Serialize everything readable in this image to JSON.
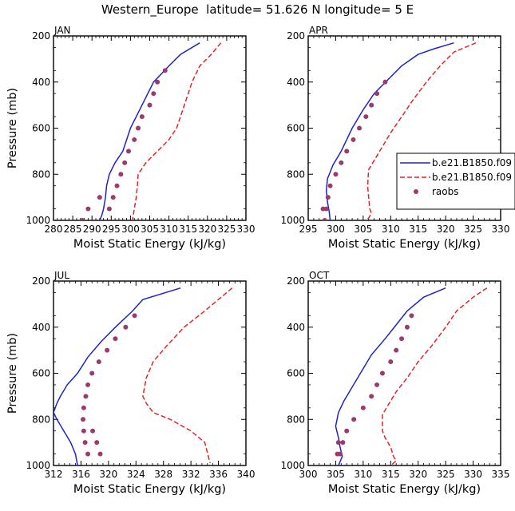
{
  "figure_title": "Western_Europe  latitude= 51.626 N longitude= 5 E",
  "colors": {
    "model1": "#1f23c8",
    "model2": "#e3242b",
    "obs": "#9b3a6b"
  },
  "legend": {
    "entries": [
      {
        "label": "b.e21.B1850.f09",
        "style": "solid",
        "color": "#1f23c8"
      },
      {
        "label": "b.e21.B1850.f09",
        "style": "dashed",
        "color": "#e3242b"
      },
      {
        "label": "raobs",
        "style": "marker",
        "color": "#9b3a6b"
      }
    ]
  },
  "chart_data": [
    {
      "type": "line",
      "title": "JAN",
      "xlabel": "Moist Static Energy (kJ/kg)",
      "ylabel": "Pressure (mb)",
      "xlim": [
        280,
        330
      ],
      "ylim": [
        1000,
        200
      ],
      "y_reversed": true,
      "xticks": [
        280,
        285,
        290,
        295,
        300,
        305,
        310,
        315,
        320,
        325,
        330
      ],
      "yticks": [
        200,
        400,
        600,
        800,
        1000
      ],
      "series": [
        {
          "kind": "line",
          "style": "solid",
          "color": "#1f23c8",
          "x": [
            318,
            313,
            310,
            306,
            303,
            300,
            298,
            296,
            294.5,
            293.8,
            293.5,
            293,
            292.5,
            292
          ],
          "y": [
            230,
            280,
            330,
            400,
            500,
            600,
            700,
            750,
            800,
            850,
            900,
            950,
            980,
            1000
          ]
        },
        {
          "kind": "line",
          "style": "dashed",
          "color": "#e3242b",
          "x": [
            323.5,
            321,
            318,
            316,
            314,
            312,
            310,
            307,
            304,
            302,
            301.8,
            301.5,
            301,
            300.5
          ],
          "y": [
            230,
            280,
            330,
            400,
            500,
            600,
            650,
            700,
            750,
            800,
            850,
            900,
            950,
            1000
          ]
        },
        {
          "kind": "scatter",
          "color": "#9b3a6b",
          "x": [
            309,
            307,
            306,
            305,
            303,
            302,
            301,
            299.5,
            298.5,
            297.5,
            296.5,
            295.5,
            294.5,
            292,
            289,
            287.5
          ],
          "y": [
            350,
            400,
            450,
            500,
            550,
            600,
            650,
            700,
            750,
            800,
            850,
            900,
            950,
            900,
            950,
            1000
          ]
        }
      ]
    },
    {
      "type": "line",
      "title": "APR",
      "xlabel": "Moist Static Energy (kJ/kg)",
      "ylabel": "",
      "xlim": [
        295,
        330
      ],
      "ylim": [
        1000,
        200
      ],
      "y_reversed": true,
      "xticks": [
        295,
        300,
        305,
        310,
        315,
        320,
        325,
        330
      ],
      "yticks": [
        200,
        400,
        600,
        800,
        1000
      ],
      "series": [
        {
          "kind": "line",
          "style": "solid",
          "color": "#1f23c8",
          "x": [
            321.5,
            318,
            315,
            312,
            309.5,
            307,
            305,
            303,
            301,
            299.5,
            298.5,
            298.3,
            298.5,
            298.8,
            299
          ],
          "y": [
            230,
            255,
            280,
            330,
            390,
            450,
            520,
            600,
            700,
            760,
            820,
            870,
            920,
            960,
            1000
          ]
        },
        {
          "kind": "line",
          "style": "dashed",
          "color": "#e3242b",
          "x": [
            325.5,
            321.5,
            319,
            316.5,
            314,
            312,
            310,
            308,
            306,
            305.8,
            306,
            306.2,
            306.5,
            306,
            305.5
          ],
          "y": [
            230,
            270,
            330,
            400,
            480,
            550,
            620,
            700,
            780,
            850,
            900,
            950,
            970,
            990,
            1000
          ]
        },
        {
          "kind": "scatter",
          "color": "#9b3a6b",
          "x": [
            309,
            307.5,
            306.5,
            305.5,
            304.3,
            303.2,
            302,
            301,
            300,
            299,
            298.6,
            298.3,
            298.0,
            297.7
          ],
          "y": [
            400,
            450,
            500,
            550,
            600,
            650,
            700,
            750,
            800,
            850,
            900,
            950,
            1000,
            950
          ]
        }
      ]
    },
    {
      "type": "line",
      "title": "JUL",
      "xlabel": "Moist Static Energy (kJ/kg)",
      "ylabel": "Pressure (mb)",
      "xlim": [
        312,
        340
      ],
      "ylim": [
        1000,
        200
      ],
      "y_reversed": true,
      "xticks": [
        312,
        316,
        320,
        324,
        328,
        332,
        336,
        340
      ],
      "yticks": [
        200,
        400,
        600,
        800,
        1000
      ],
      "series": [
        {
          "kind": "line",
          "style": "solid",
          "color": "#1f23c8",
          "x": [
            330.5,
            325,
            323.5,
            321,
            319,
            317,
            315.5,
            314,
            313,
            312.5,
            312,
            312.5,
            313.5,
            314.5,
            315.2,
            315.5
          ],
          "y": [
            230,
            280,
            330,
            400,
            460,
            530,
            600,
            650,
            700,
            730,
            770,
            800,
            850,
            900,
            950,
            1000
          ]
        },
        {
          "kind": "line",
          "style": "dashed",
          "color": "#e3242b",
          "x": [
            338,
            336,
            334,
            331,
            328.5,
            326.5,
            325.5,
            325,
            325.5,
            326.5,
            329,
            332,
            334,
            334.8
          ],
          "y": [
            230,
            280,
            330,
            400,
            480,
            550,
            620,
            700,
            730,
            770,
            800,
            850,
            900,
            990
          ]
        },
        {
          "kind": "scatter",
          "color": "#9b3a6b",
          "x": [
            323.8,
            322.5,
            321,
            319.8,
            318.6,
            317.6,
            317,
            316.7,
            316.4,
            316.3,
            316.4,
            316.6,
            317,
            317.7,
            318.3,
            318.8
          ],
          "y": [
            350,
            400,
            450,
            500,
            550,
            600,
            650,
            700,
            750,
            800,
            850,
            900,
            950,
            850,
            900,
            950
          ]
        }
      ]
    },
    {
      "type": "line",
      "title": "OCT",
      "xlabel": "Moist Static Energy (kJ/kg)",
      "ylabel": "",
      "xlim": [
        300,
        335
      ],
      "ylim": [
        1000,
        200
      ],
      "y_reversed": true,
      "xticks": [
        300,
        305,
        310,
        315,
        320,
        325,
        330,
        335
      ],
      "yticks": [
        200,
        400,
        600,
        800,
        1000
      ],
      "series": [
        {
          "kind": "line",
          "style": "solid",
          "color": "#1f23c8",
          "x": [
            325,
            321,
            318,
            316,
            314,
            311.5,
            309.5,
            308,
            306.5,
            305.5,
            305,
            305.5,
            305.8,
            306.2,
            305.5
          ],
          "y": [
            230,
            270,
            330,
            390,
            450,
            520,
            600,
            660,
            720,
            770,
            830,
            880,
            920,
            960,
            1000
          ]
        },
        {
          "kind": "line",
          "style": "dashed",
          "color": "#e3242b",
          "x": [
            332.5,
            330,
            327,
            325,
            322.5,
            320,
            318,
            316,
            314.5,
            313.5,
            313.5,
            314,
            315,
            315.5,
            316,
            315
          ],
          "y": [
            230,
            270,
            330,
            400,
            480,
            550,
            620,
            680,
            740,
            780,
            850,
            880,
            920,
            960,
            980,
            1000
          ]
        },
        {
          "kind": "scatter",
          "color": "#9b3a6b",
          "x": [
            318.8,
            318,
            317,
            316,
            315,
            313.5,
            312.5,
            311.5,
            310,
            308.3,
            307,
            306.3,
            305.8,
            305.5,
            305.3
          ],
          "y": [
            350,
            400,
            450,
            500,
            550,
            600,
            650,
            700,
            750,
            800,
            850,
            900,
            950,
            900,
            950
          ]
        }
      ]
    }
  ]
}
